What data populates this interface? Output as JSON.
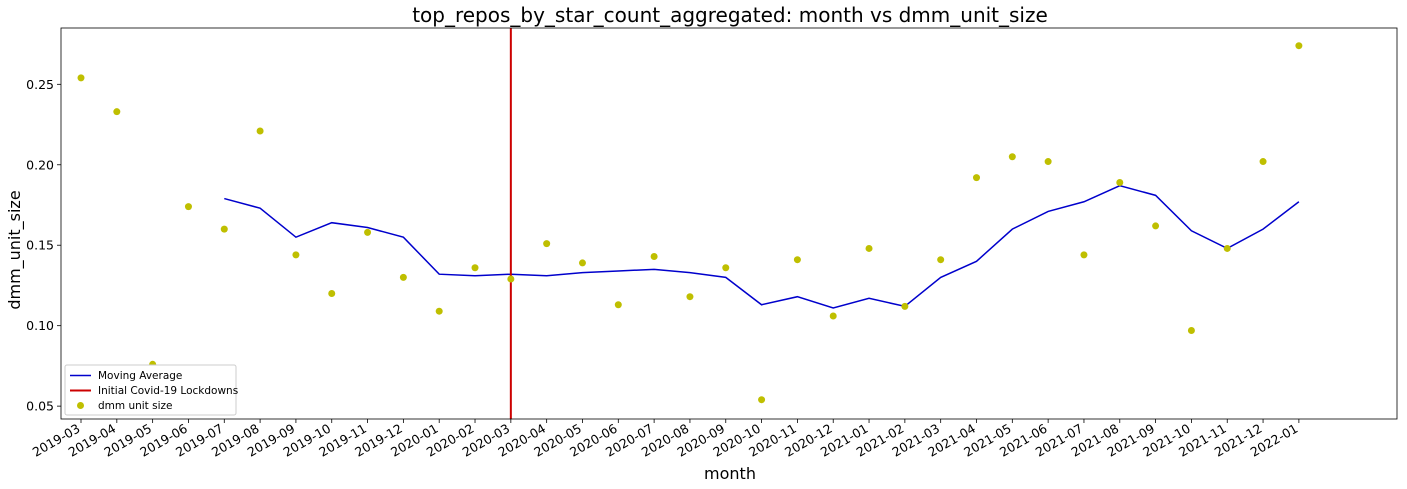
{
  "chart_data": {
    "type": "scatter",
    "title": "top_repos_by_star_count_aggregated: month vs dmm_unit_size",
    "xlabel": "month",
    "ylabel": "dmm_unit_size",
    "ylim": [
      0.042,
      0.285
    ],
    "yticks": [
      0.05,
      0.1,
      0.15,
      0.2,
      0.25
    ],
    "ytick_labels": [
      "0.05",
      "0.10",
      "0.15",
      "0.20",
      "0.25"
    ],
    "categories": [
      "2019-03",
      "2019-04",
      "2019-05",
      "2019-06",
      "2019-07",
      "2019-08",
      "2019-09",
      "2019-10",
      "2019-11",
      "2019-12",
      "2020-01",
      "2020-02",
      "2020-03",
      "2020-04",
      "2020-05",
      "2020-06",
      "2020-07",
      "2020-08",
      "2020-09",
      "2020-10",
      "2020-11",
      "2020-12",
      "2021-01",
      "2021-02",
      "2021-03",
      "2021-04",
      "2021-05",
      "2021-06",
      "2021-07",
      "2021-08",
      "2021-09",
      "2021-10",
      "2021-11",
      "2021-12",
      "2022-01"
    ],
    "grid": false,
    "legend_position": "lower-left",
    "series": [
      {
        "name": "Moving Average",
        "kind": "line",
        "color": "#0000cc",
        "values": [
          null,
          null,
          null,
          null,
          0.179,
          0.173,
          0.155,
          0.164,
          0.161,
          0.155,
          0.132,
          0.131,
          0.132,
          0.131,
          0.133,
          0.134,
          0.135,
          0.133,
          0.13,
          0.113,
          0.118,
          0.111,
          0.117,
          0.112,
          0.13,
          0.14,
          0.16,
          0.171,
          0.177,
          0.187,
          0.181,
          0.159,
          0.148,
          0.16,
          0.177
        ]
      },
      {
        "name": "dmm unit size",
        "kind": "scatter",
        "color": "#bfbf00",
        "values": [
          0.254,
          0.233,
          0.076,
          0.174,
          0.16,
          0.221,
          0.144,
          0.12,
          0.158,
          0.13,
          0.109,
          0.136,
          0.129,
          0.151,
          0.139,
          0.113,
          0.143,
          0.118,
          0.136,
          0.054,
          0.141,
          0.106,
          0.148,
          0.112,
          0.141,
          0.192,
          0.205,
          0.202,
          0.144,
          0.189,
          0.162,
          0.097,
          0.148,
          0.202,
          0.274
        ]
      }
    ],
    "vline": {
      "name": "Initial Covid-19 Lockdowns",
      "x": "2020-03",
      "color": "#cc0000"
    }
  }
}
